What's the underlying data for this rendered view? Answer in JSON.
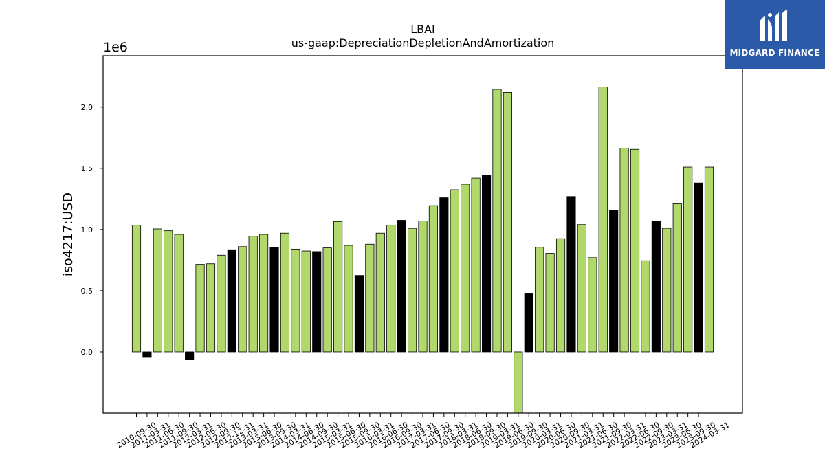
{
  "logo": {
    "name": "MIDGARD FINANCE"
  },
  "chart_data": {
    "type": "bar",
    "title": "LBAI",
    "subtitle": "us-gaap:DepreciationDepletionAndAmortization",
    "ylabel": "iso4217:USD",
    "xlabel": "",
    "y_offset_label": "1e6",
    "ylim": [
      -0.5,
      2.42
    ],
    "y_ticks": [
      0.0,
      0.5,
      1.0,
      1.5,
      2.0
    ],
    "y_tick_labels": [
      "0.0",
      "0.5",
      "1.0",
      "1.5",
      "2.0"
    ],
    "grid": false,
    "colors": {
      "default": "#b0d86a",
      "alt": "#000000"
    },
    "categories": [
      "2010-09-30",
      "2010-12-31",
      "2011-03-31",
      "2011-06-30",
      "2011-09-30",
      "2011-12-31",
      "2012-03-31",
      "2012-06-30",
      "2012-09-30",
      "2012-12-31",
      "2013-03-31",
      "2013-06-30",
      "2013-09-30",
      "2013-12-31",
      "2014-03-31",
      "2014-06-30",
      "2014-09-30",
      "2014-12-31",
      "2015-03-31",
      "2015-06-30",
      "2015-09-30",
      "2015-12-31",
      "2016-03-31",
      "2016-06-30",
      "2016-09-30",
      "2016-12-31",
      "2017-03-31",
      "2017-06-30",
      "2017-09-30",
      "2017-12-31",
      "2018-03-31",
      "2018-06-30",
      "2018-09-30",
      "2018-12-31",
      "2019-03-31",
      "2019-06-30",
      "2019-09-30",
      "2019-12-31",
      "2020-03-31",
      "2020-06-30",
      "2020-09-30",
      "2020-12-31",
      "2021-03-31",
      "2021-06-30",
      "2021-09-30",
      "2021-12-31",
      "2022-03-31",
      "2022-06-30",
      "2022-09-30",
      "2022-12-31",
      "2023-03-31",
      "2023-06-30",
      "2023-09-30",
      "2023-12-31",
      "2024-03-31"
    ],
    "values": [
      1.035,
      -0.045,
      1.005,
      0.99,
      0.96,
      -0.06,
      0.715,
      0.72,
      0.79,
      0.835,
      0.86,
      0.945,
      0.96,
      0.855,
      0.97,
      0.84,
      0.825,
      0.82,
      0.85,
      1.065,
      0.87,
      0.625,
      0.88,
      0.97,
      1.035,
      1.075,
      1.01,
      1.07,
      1.195,
      1.26,
      1.325,
      1.37,
      1.42,
      1.445,
      2.145,
      2.12,
      -0.52,
      0.48,
      0.855,
      0.805,
      0.925,
      1.27,
      1.04,
      0.77,
      2.165,
      1.155,
      1.665,
      1.655,
      0.745,
      1.065,
      1.01,
      1.21,
      1.51,
      1.38,
      1.51
    ],
    "bar_color_keys": [
      "default",
      "alt",
      "default",
      "default",
      "default",
      "alt",
      "default",
      "default",
      "default",
      "alt",
      "default",
      "default",
      "default",
      "alt",
      "default",
      "default",
      "default",
      "alt",
      "default",
      "default",
      "default",
      "alt",
      "default",
      "default",
      "default",
      "alt",
      "default",
      "default",
      "default",
      "alt",
      "default",
      "default",
      "default",
      "alt",
      "default",
      "default",
      "default",
      "alt",
      "default",
      "default",
      "default",
      "alt",
      "default",
      "default",
      "default",
      "alt",
      "default",
      "default",
      "default",
      "alt",
      "default",
      "default",
      "default",
      "alt",
      "default"
    ],
    "x_tick_labels": [
      "2010-09-30",
      "2011-03-31",
      "2011-06-30",
      "2011-09-30",
      "2012-03-31",
      "2012-06-30",
      "2012-09-30",
      "2012-12-31",
      "2013-03-31",
      "2013-06-30",
      "2013-09-30",
      "2014-03-31",
      "2014-06-30",
      "2014-09-30",
      "2015-03-31",
      "2015-06-30",
      "2015-09-30",
      "2016-03-31",
      "2016-06-30",
      "2016-09-30",
      "2017-03-31",
      "2017-06-30",
      "2017-09-30",
      "2018-03-31",
      "2018-06-30",
      "2018-09-30",
      "2019-03-31",
      "2019-06-30",
      "2019-09-30",
      "2020-03-31",
      "2020-06-30",
      "2020-09-30",
      "2021-03-31",
      "2021-06-30",
      "2021-09-30",
      "2022-03-31",
      "2022-06-30",
      "2022-09-30",
      "2023-03-31",
      "2023-06-30",
      "2023-09-30",
      "2024-03-31"
    ]
  }
}
